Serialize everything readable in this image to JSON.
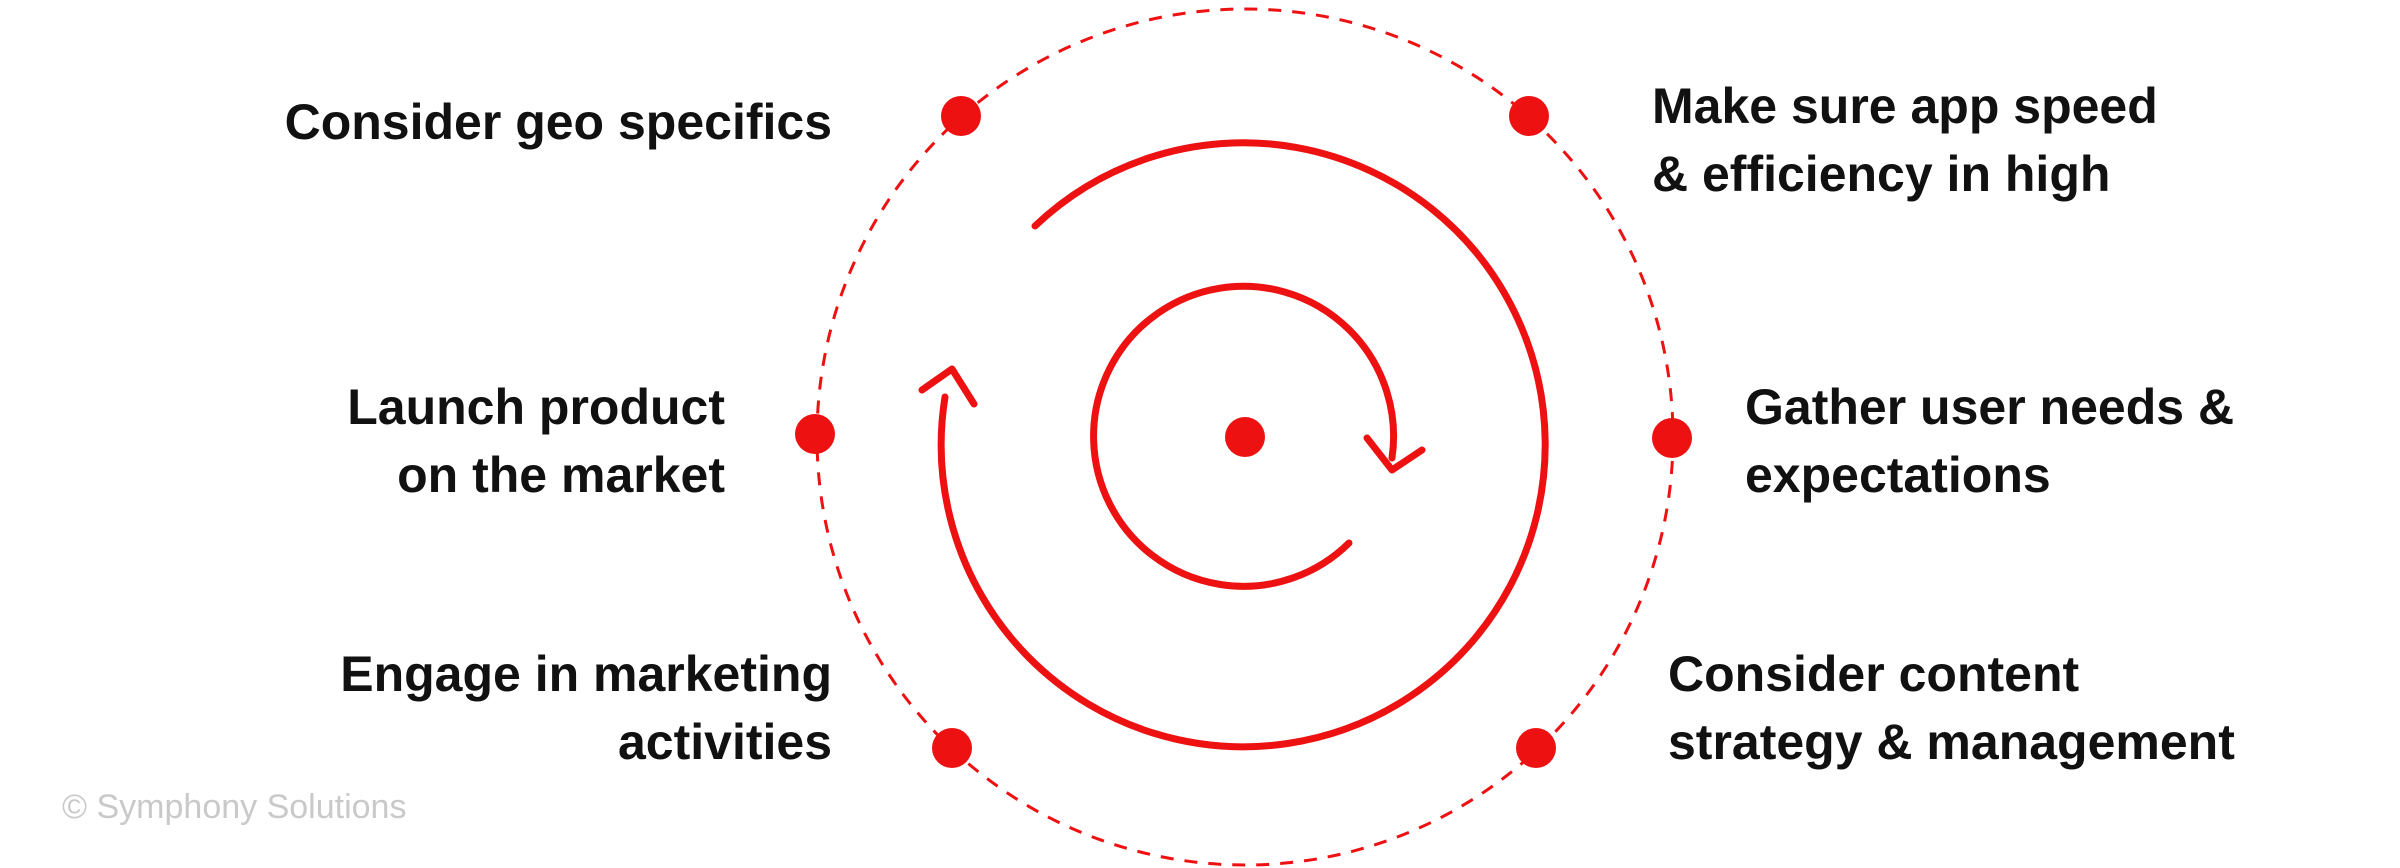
{
  "colors": {
    "accent": "#ee1111",
    "text": "#111111",
    "muted": "#c9c9c9"
  },
  "diagram": {
    "steps": [
      {
        "id": "top-left",
        "lines": [
          "Consider geo specifics"
        ]
      },
      {
        "id": "top-right",
        "lines": [
          "Make sure app speed",
          "& efficiency in high"
        ]
      },
      {
        "id": "mid-right",
        "lines": [
          "Gather user needs &",
          "expectations"
        ]
      },
      {
        "id": "bottom-right",
        "lines": [
          "Consider content",
          "strategy & management"
        ]
      },
      {
        "id": "bottom-left",
        "lines": [
          "Engage in marketing",
          "activities"
        ]
      },
      {
        "id": "mid-left",
        "lines": [
          "Launch product",
          "on the market"
        ]
      }
    ]
  },
  "footer": {
    "copyright": "© Symphony Solutions"
  }
}
